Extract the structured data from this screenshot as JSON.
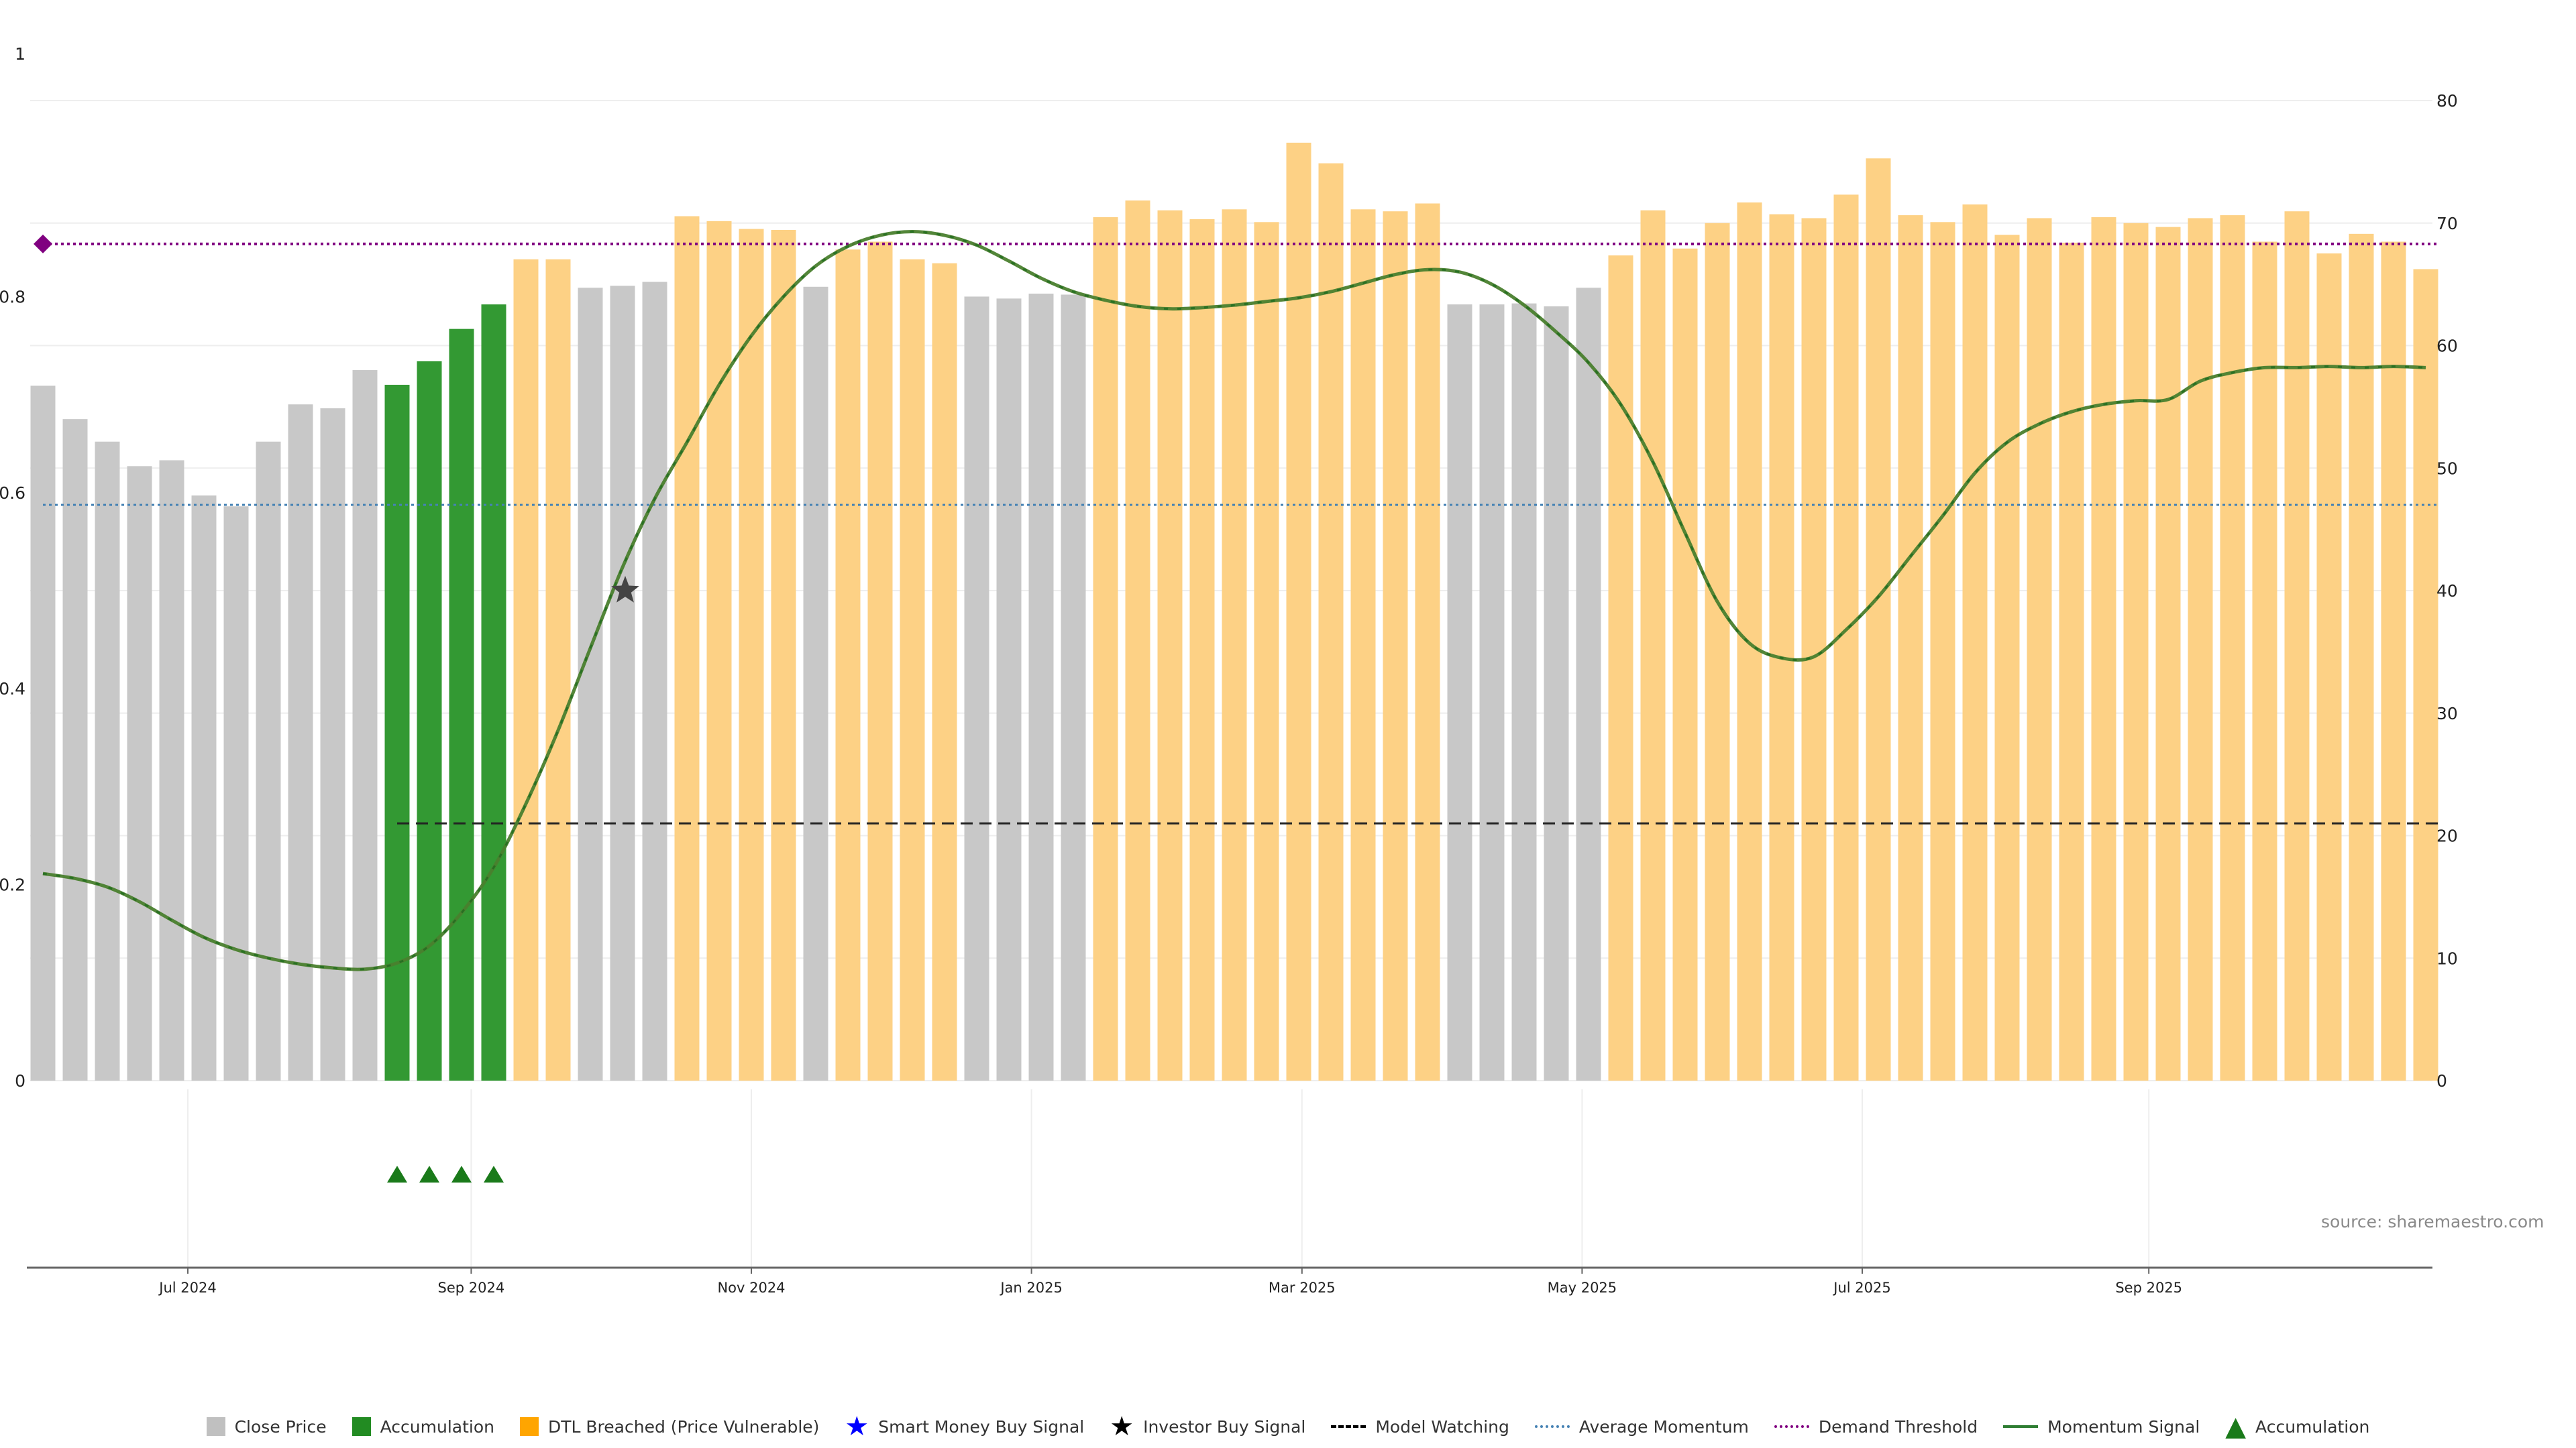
{
  "chart_data": {
    "type": "bar",
    "source": "source: sharemaestro.com",
    "left_axis": {
      "range": [
        0,
        1.0
      ],
      "ticks": [
        "0",
        "0.2",
        "0.4",
        "0.6",
        "0.8",
        "1"
      ]
    },
    "right_axis": {
      "range": [
        0,
        80
      ],
      "ticks": [
        "0",
        "10",
        "20",
        "30",
        "40",
        "50",
        "60",
        "70",
        "80"
      ]
    },
    "x_ticks": [
      {
        "label": "Jul 2024",
        "index": 4.5
      },
      {
        "label": "Sep 2024",
        "index": 13.3
      },
      {
        "label": "Nov 2024",
        "index": 22.0
      },
      {
        "label": "Jan 2025",
        "index": 30.7
      },
      {
        "label": "Mar 2025",
        "index": 39.1
      },
      {
        "label": "May 2025",
        "index": 47.8
      },
      {
        "label": "Jul 2025",
        "index": 56.5
      },
      {
        "label": "Sep 2025",
        "index": 65.4
      }
    ],
    "bar_categories": {
      "G": {
        "name": "Close Price",
        "color": "#c8c8c8"
      },
      "A": {
        "name": "Accumulation",
        "color": "#339933"
      },
      "O": {
        "name": "DTL Breached (Price Vulnerable)",
        "color": "#fdd185"
      }
    },
    "close_price": [
      0.709,
      0.675,
      0.652,
      0.627,
      0.633,
      0.597,
      0.586,
      0.652,
      0.69,
      0.686,
      0.725,
      0.71,
      0.734,
      0.767,
      0.792,
      0.838,
      0.838,
      0.809,
      0.811,
      0.815,
      0.882,
      0.877,
      0.869,
      0.868,
      0.81,
      0.848,
      0.856,
      0.838,
      0.834,
      0.8,
      0.798,
      0.803,
      0.802,
      0.881,
      0.898,
      0.888,
      0.879,
      0.889,
      0.876,
      0.957,
      0.936,
      0.889,
      0.887,
      0.895,
      0.792,
      0.792,
      0.793,
      0.79,
      0.809,
      0.842,
      0.888,
      0.849,
      0.875,
      0.896,
      0.884,
      0.88,
      0.904,
      0.941,
      0.883,
      0.876,
      0.894,
      0.863,
      0.88,
      0.855,
      0.881,
      0.875,
      0.871,
      0.88,
      0.883,
      0.856,
      0.887,
      0.844,
      0.864,
      0.856,
      0.828
    ],
    "bar_state": [
      "G",
      "G",
      "G",
      "G",
      "G",
      "G",
      "G",
      "G",
      "G",
      "G",
      "G",
      "A",
      "A",
      "A",
      "A",
      "O",
      "O",
      "G",
      "G",
      "G",
      "O",
      "O",
      "O",
      "O",
      "G",
      "O",
      "O",
      "O",
      "O",
      "G",
      "G",
      "G",
      "G",
      "O",
      "O",
      "O",
      "O",
      "O",
      "O",
      "O",
      "O",
      "O",
      "O",
      "O",
      "G",
      "G",
      "G",
      "G",
      "G",
      "O",
      "O",
      "O",
      "O",
      "O",
      "O",
      "O",
      "O",
      "O",
      "O",
      "O",
      "O",
      "O",
      "O",
      "O",
      "O",
      "O",
      "O",
      "O",
      "O",
      "O",
      "O",
      "O",
      "O",
      "O",
      "O"
    ],
    "momentum_signal": [
      16.9,
      16.5,
      15.8,
      14.6,
      13.1,
      11.7,
      10.7,
      10.0,
      9.5,
      9.2,
      9.1,
      9.6,
      11.0,
      13.7,
      17.4,
      22.6,
      28.6,
      35.3,
      41.9,
      47.5,
      52.1,
      56.8,
      60.8,
      64.0,
      66.5,
      68.1,
      69.0,
      69.3,
      69.0,
      68.2,
      66.9,
      65.5,
      64.4,
      63.7,
      63.2,
      63.0,
      63.1,
      63.3,
      63.6,
      63.9,
      64.4,
      65.1,
      65.8,
      66.2,
      66.0,
      65.0,
      63.3,
      61.1,
      58.6,
      55.2,
      50.5,
      44.7,
      39.1,
      35.7,
      34.5,
      34.6,
      36.8,
      39.5,
      42.8,
      46.1,
      49.6,
      52.1,
      53.6,
      54.6,
      55.2,
      55.5,
      55.6,
      57.1,
      57.8,
      58.2,
      58.2,
      58.3,
      58.2,
      58.3,
      58.2
    ],
    "average_momentum": 47.0,
    "demand_threshold": 68.3,
    "model_watching": 21.0,
    "model_watching_start_index": 11,
    "accumulation_marker_indices": [
      11,
      12,
      13,
      14
    ],
    "investor_buy_signal": {
      "index": 18,
      "value": 0.5
    },
    "demand_marker": {
      "index": 0,
      "value": 68.3
    },
    "legend": [
      {
        "label": "Close Price",
        "kind": "box",
        "color": "#c0c0c0"
      },
      {
        "label": "Accumulation",
        "kind": "box",
        "color": "#228b22"
      },
      {
        "label": "DTL Breached (Price Vulnerable)",
        "kind": "box",
        "color": "#ffa500"
      },
      {
        "label": "Smart Money Buy Signal",
        "kind": "glyph",
        "glyph": "★",
        "color": "#0000ff"
      },
      {
        "label": "Investor Buy Signal",
        "kind": "glyph",
        "glyph": "★",
        "color": "#000000"
      },
      {
        "label": "Model Watching",
        "kind": "line",
        "style": "dashed",
        "color": "#000000"
      },
      {
        "label": "Average Momentum",
        "kind": "line",
        "style": "dotted",
        "color": "#4682b4"
      },
      {
        "label": "Demand Threshold",
        "kind": "line",
        "style": "dotted",
        "color": "#800080"
      },
      {
        "label": "Momentum Signal",
        "kind": "line",
        "style": "solid",
        "color": "#2e7d32"
      },
      {
        "label": "Accumulation",
        "kind": "glyph",
        "glyph": "▲",
        "color": "#1a7a1a"
      }
    ]
  }
}
